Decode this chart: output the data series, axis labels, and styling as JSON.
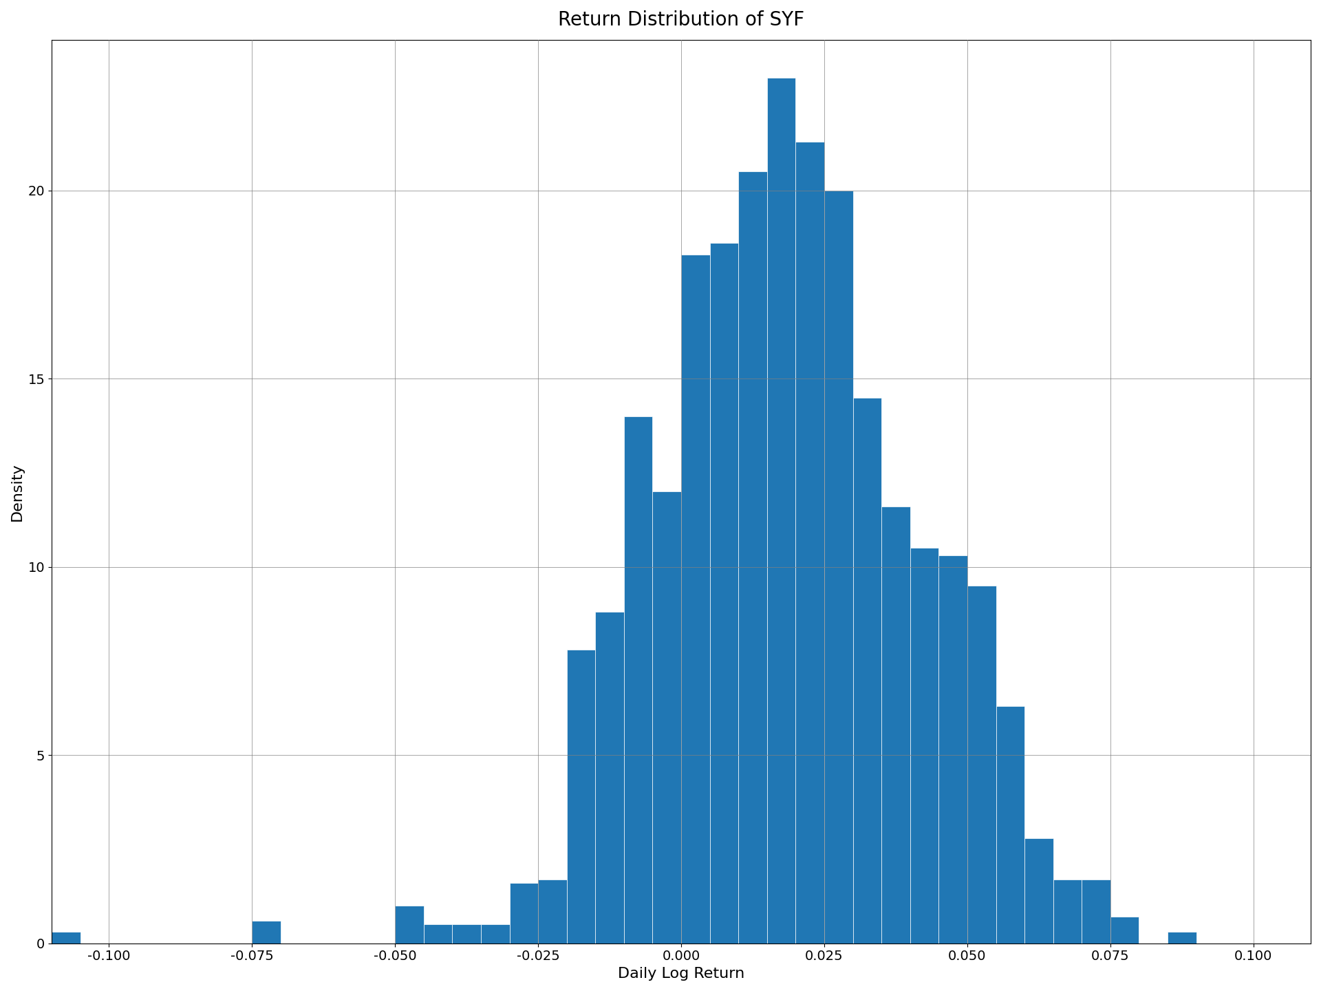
{
  "title": "Return Distribution of SYF",
  "xlabel": "Daily Log Return",
  "ylabel": "Density",
  "bar_color": "#2077b4",
  "bar_edge_color": "white",
  "xlim": [
    -0.11,
    0.11
  ],
  "ylim": [
    0,
    24
  ],
  "xticks": [
    -0.1,
    -0.075,
    -0.05,
    -0.025,
    0.0,
    0.025,
    0.05,
    0.075,
    0.1
  ],
  "yticks": [
    0,
    5,
    10,
    15,
    20
  ],
  "bin_edges": [
    -0.11,
    -0.105,
    -0.1,
    -0.095,
    -0.09,
    -0.085,
    -0.08,
    -0.075,
    -0.07,
    -0.065,
    -0.06,
    -0.055,
    -0.05,
    -0.045,
    -0.04,
    -0.035,
    -0.03,
    -0.025,
    -0.02,
    -0.015,
    -0.01,
    -0.005,
    0.0,
    0.005,
    0.01,
    0.015,
    0.02,
    0.025,
    0.03,
    0.035,
    0.04,
    0.045,
    0.05,
    0.055,
    0.06,
    0.065,
    0.07,
    0.075,
    0.08,
    0.085,
    0.09
  ],
  "densities": [
    0.3,
    0.0,
    0.0,
    0.0,
    0.0,
    0.0,
    0.0,
    0.6,
    0.0,
    0.0,
    0.0,
    0.0,
    1.0,
    0.5,
    0.5,
    0.5,
    1.6,
    1.7,
    7.8,
    8.8,
    14.0,
    12.0,
    18.3,
    18.6,
    20.5,
    23.0,
    21.3,
    20.0,
    14.5,
    11.6,
    10.5,
    10.3,
    9.5,
    6.3,
    2.8,
    1.7,
    1.7,
    0.7,
    0.0,
    0.3
  ],
  "grid": true,
  "title_fontsize": 20,
  "label_fontsize": 16,
  "tick_fontsize": 14,
  "figure_facecolor": "white"
}
